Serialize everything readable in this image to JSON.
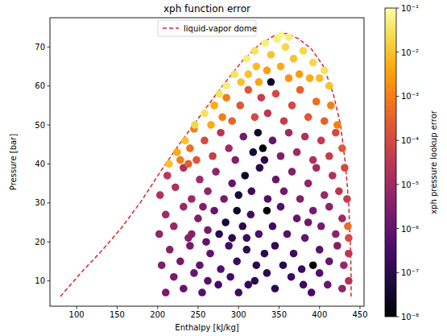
{
  "chart_data": {
    "type": "scatter",
    "title": "xph function error",
    "x_label": "Enthalpy [kJ/kg]",
    "y_label": "Pressure [bar]",
    "xlim": [
      67,
      455
    ],
    "ylim": [
      3.5,
      77.5
    ],
    "xticks": [
      100,
      150,
      200,
      250,
      300,
      350,
      400,
      450
    ],
    "yticks": [
      10,
      20,
      30,
      40,
      50,
      60,
      70
    ],
    "grid": false,
    "legend": "upper center",
    "series": [
      {
        "name": "liquid-vapor dome",
        "type": "line",
        "line_style": "dashed",
        "color": "#d62728",
        "x": [
          80,
          105,
          130,
          155,
          180,
          205,
          230,
          255,
          280,
          305,
          325,
          345,
          360,
          375,
          390,
          405,
          417,
          426,
          432,
          436,
          438,
          439,
          439
        ],
        "values": [
          6,
          12,
          17.5,
          23.5,
          30.5,
          38.5,
          46,
          53,
          60,
          66.5,
          70.5,
          73,
          73.5,
          72,
          69.5,
          65,
          58,
          50,
          40,
          30,
          20,
          12,
          6
        ]
      },
      {
        "type": "scatter",
        "marker": "circle",
        "x": [
          210,
          232,
          255,
          275,
          300,
          320,
          345,
          365,
          390,
          410,
          428,
          436,
          220,
          245,
          290,
          335,
          380,
          400,
          262,
          312,
          205,
          215,
          228,
          240,
          252,
          265,
          278,
          288,
          298,
          310,
          322,
          332,
          345,
          355,
          368,
          378,
          392,
          400,
          412,
          422,
          430,
          436,
          260,
          202,
          210,
          220,
          232,
          242,
          250,
          262,
          270,
          276,
          284,
          292,
          298,
          305,
          315,
          325,
          335,
          342,
          352,
          360,
          372,
          382,
          392,
          402,
          412,
          420,
          428,
          435,
          436,
          238,
          310,
          386,
          256,
          203,
          212,
          222,
          232,
          242,
          252,
          262,
          272,
          282,
          292,
          300,
          308,
          316,
          326,
          330,
          336,
          346,
          356,
          366,
          376,
          386,
          396,
          406,
          416,
          424,
          431,
          434,
          214,
          224,
          234,
          228,
          240,
          245,
          248,
          258,
          268,
          278,
          288,
          296,
          306,
          318,
          324,
          332,
          342,
          352,
          362,
          372,
          382,
          392,
          402,
          412,
          420,
          428,
          238,
          246,
          258,
          266,
          276,
          270,
          280,
          285,
          292,
          302,
          312,
          320,
          328,
          336,
          346,
          356,
          366,
          376,
          386,
          396,
          406,
          414,
          422,
          340,
          285,
          295,
          303,
          310,
          312,
          320,
          322,
          333,
          335,
          340,
          348,
          352,
          358,
          362,
          368,
          375,
          380,
          388,
          392,
          400,
          406,
          412,
          352,
          362,
          325
        ],
        "values": [
          7,
          8,
          7,
          9,
          7,
          10,
          8,
          11,
          7,
          9,
          8,
          10,
          11,
          12,
          11,
          12,
          9,
          12,
          10,
          9,
          14,
          18,
          15,
          19,
          14,
          17,
          13,
          19,
          15,
          18,
          14,
          17,
          19,
          14,
          17,
          13,
          14,
          18,
          15,
          19,
          14,
          17,
          20,
          22,
          27,
          24,
          29,
          22,
          26,
          23,
          28,
          22,
          25,
          21,
          28,
          24,
          27,
          22,
          28,
          24,
          29,
          22,
          26,
          21,
          28,
          24,
          29,
          22,
          26,
          24,
          21,
          21,
          21,
          25,
          29,
          32,
          37,
          34,
          39,
          31,
          36,
          33,
          38,
          31,
          35,
          32,
          37,
          33,
          39,
          44,
          31,
          36,
          33,
          38,
          31,
          35,
          39,
          32,
          37,
          33,
          39,
          31,
          40,
          43,
          46,
          41,
          44,
          49,
          41,
          46,
          42,
          48,
          44,
          41,
          47,
          43,
          48,
          41,
          46,
          42,
          48,
          43,
          47,
          41,
          46,
          42,
          48,
          44,
          40,
          50,
          53,
          50,
          58,
          55,
          52,
          57,
          51,
          55,
          59,
          52,
          57,
          53,
          58,
          51,
          55,
          59,
          52,
          56,
          51,
          55,
          50,
          61,
          60,
          63,
          61,
          67,
          63,
          69,
          65,
          71,
          64,
          68,
          72,
          65,
          70,
          62,
          67,
          63,
          69,
          62,
          66,
          62,
          64,
          60,
          73,
          72.5,
          61
        ],
        "color_values": [
          2e-06,
          1e-06,
          5e-07,
          3e-07,
          2e-07,
          1e-07,
          1e-07,
          2e-07,
          3e-07,
          1e-06,
          5e-06,
          2e-05,
          2e-06,
          1e-06,
          3e-07,
          1e-07,
          2e-07,
          5e-07,
          6e-07,
          1.5e-07,
          3e-06,
          4e-06,
          2e-06,
          2e-06,
          1e-06,
          8e-07,
          5e-07,
          3e-07,
          2e-07,
          1e-07,
          1e-07,
          1e-07,
          1.5e-07,
          1e-07,
          2e-07,
          2e-07,
          1e-08,
          6e-07,
          1e-06,
          3e-06,
          8e-06,
          3e-05,
          9e-07,
          6e-06,
          1e-05,
          7e-06,
          8e-06,
          4e-06,
          3e-06,
          2e-06,
          1e-06,
          1e-07,
          5e-08,
          1e-07,
          3e-08,
          1e-07,
          3e-07,
          4e-07,
          1e-08,
          2e-07,
          5e-07,
          6e-07,
          1e-06,
          1e-06,
          2e-06,
          2e-06,
          4e-06,
          5e-06,
          1e-05,
          0.0005,
          0.0001,
          4e-06,
          2e-07,
          1.5e-06,
          3e-06,
          2e-05,
          3e-05,
          2e-05,
          2e-05,
          1e-05,
          1e-05,
          6e-06,
          5e-06,
          2e-06,
          1e-06,
          5e-08,
          3e-08,
          2e-07,
          1e-07,
          1e-08,
          5e-07,
          1e-06,
          2e-06,
          3e-06,
          3e-06,
          5e-06,
          1e-05,
          8e-06,
          2e-05,
          3e-05,
          0.0001,
          4e-05,
          0.01,
          0.005,
          0.01,
          0.001,
          0.0005,
          0.001,
          0.0002,
          0.0001,
          5e-05,
          3e-05,
          1e-05,
          3e-06,
          2e-06,
          5e-08,
          3e-08,
          1e-07,
          1e-06,
          3e-06,
          1e-05,
          1e-05,
          2e-05,
          2e-05,
          4e-05,
          5e-05,
          0.0001,
          0.0002,
          0.0003,
          0.02,
          0.03,
          0.005,
          0.03,
          0.005,
          0.001,
          0.001,
          0.0003,
          0.0002,
          0.0002,
          0.0001,
          5e-05,
          3e-05,
          0.0001,
          5e-05,
          0.0001,
          0.0003,
          0.0002,
          0.0005,
          0.0003,
          0.001,
          0.001,
          3e-08,
          0.05,
          0.03,
          0.01,
          0.05,
          0.01,
          0.03,
          0.008,
          0.05,
          0.003,
          0.01,
          0.05,
          0.005,
          0.02,
          0.002,
          0.01,
          0.003,
          0.02,
          0.005,
          0.02,
          0.008,
          0.03,
          0.01,
          0.08,
          0.05,
          0.004
        ]
      }
    ],
    "colorbar": {
      "label": "xph pressure lookup error",
      "log": true,
      "lim": [
        1e-08,
        0.1
      ],
      "ticks": [
        {
          "value": 1e-08,
          "label": "10⁻⁸"
        },
        {
          "value": 1e-07,
          "label": "10⁻⁷"
        },
        {
          "value": 1e-06,
          "label": "10⁻⁶"
        },
        {
          "value": 1e-05,
          "label": "10⁻⁵"
        },
        {
          "value": 0.0001,
          "label": "10⁻⁴"
        },
        {
          "value": 0.001,
          "label": "10⁻³"
        },
        {
          "value": 0.01,
          "label": "10⁻²"
        },
        {
          "value": 0.1,
          "label": "10⁻¹"
        }
      ]
    }
  }
}
